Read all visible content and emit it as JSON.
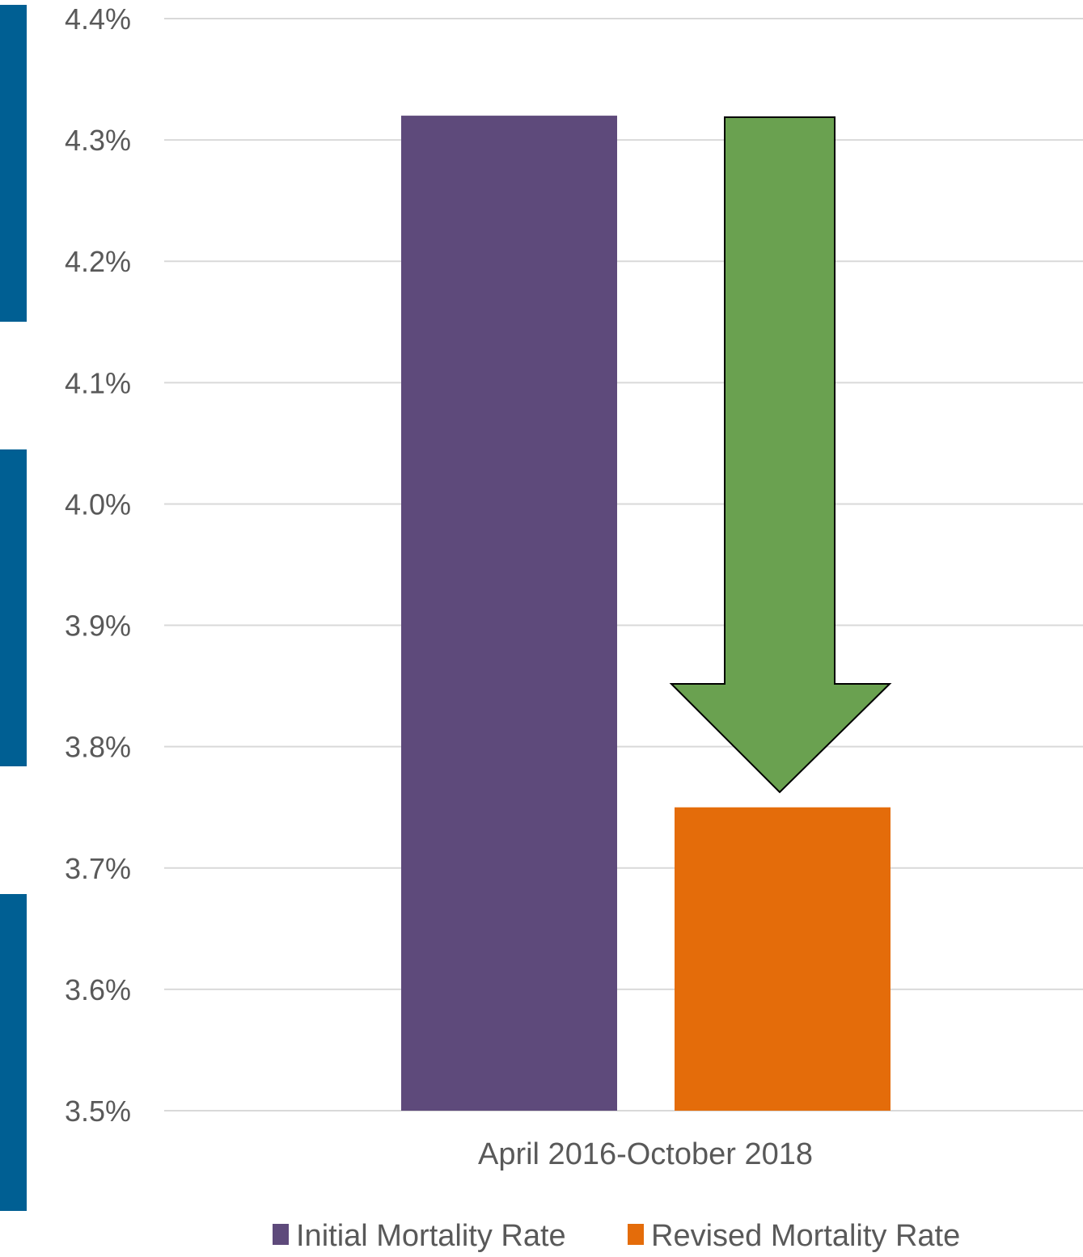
{
  "chart_data": {
    "type": "bar",
    "categories": [
      "April 2016-October 2018"
    ],
    "series": [
      {
        "name": "Initial Mortality Rate",
        "values": [
          4.32
        ],
        "color": "#5e4a7b"
      },
      {
        "name": "Revised Mortality Rate",
        "values": [
          3.75
        ],
        "color": "#e46c0a"
      }
    ],
    "ylim": [
      3.5,
      4.4
    ],
    "yticks": [
      "3.5%",
      "3.6%",
      "3.7%",
      "3.8%",
      "3.9%",
      "4.0%",
      "4.1%",
      "4.2%",
      "4.3%",
      "4.4%"
    ],
    "ytick_values": [
      3.5,
      3.6,
      3.7,
      3.8,
      3.9,
      4.0,
      4.1,
      4.2,
      4.3,
      4.4
    ],
    "grid": true,
    "legend_position": "bottom",
    "annotation": {
      "shape": "down-arrow",
      "color": "#6aa150"
    },
    "gridline_color": "#d9d9d9",
    "side_bar_color": "#005f93"
  }
}
